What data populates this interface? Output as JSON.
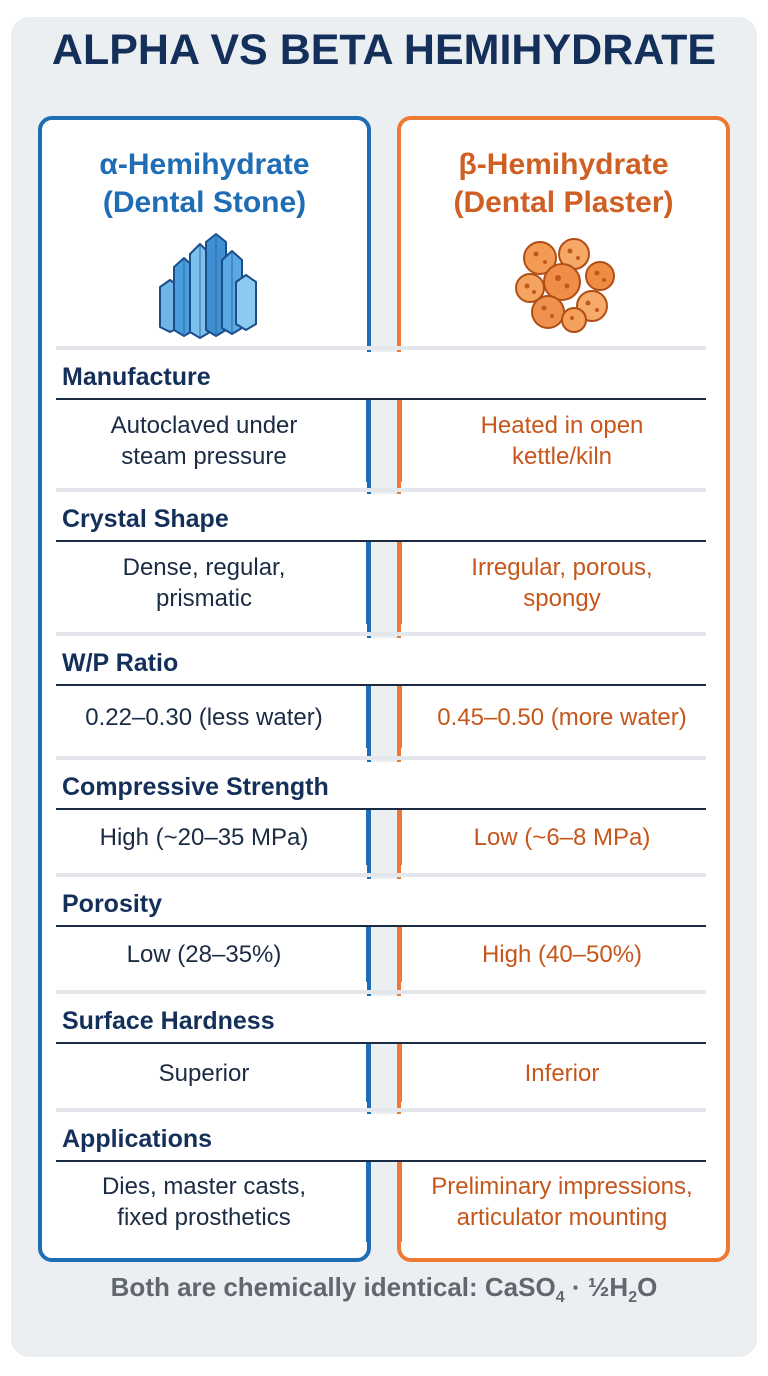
{
  "title": "ALPHA VS BETA HEMIHYDRATE",
  "columns": {
    "left": {
      "line1": "α-Hemihydrate",
      "line2": "(Dental Stone)",
      "color": "#1f6db4",
      "icon": "prismatic-crystal-icon"
    },
    "right": {
      "line1": "β-Hemihydrate",
      "line2": "(Dental Plaster)",
      "color": "#ec7a33",
      "icon": "porous-particles-icon"
    }
  },
  "rows": [
    {
      "label": "Manufacture",
      "left": [
        "Autoclaved under",
        "steam pressure"
      ],
      "right": [
        "Heated in open",
        "kettle/kiln"
      ]
    },
    {
      "label": "Crystal Shape",
      "left": [
        "Dense, regular,",
        "prismatic"
      ],
      "right": [
        "Irregular, porous,",
        "spongy"
      ]
    },
    {
      "label": "W/P Ratio",
      "left": [
        "0.22–0.30 (less water)"
      ],
      "right": [
        "0.45–0.50 (more water)"
      ]
    },
    {
      "label": "Compressive Strength",
      "left": [
        "High (~20–35 MPa)"
      ],
      "right": [
        "Low (~6–8 MPa)"
      ]
    },
    {
      "label": "Porosity",
      "left": [
        "Low (28–35%)"
      ],
      "right": [
        "High (40–50%)"
      ]
    },
    {
      "label": "Surface Hardness",
      "left": [
        "Superior"
      ],
      "right": [
        "Inferior"
      ]
    },
    {
      "label": "Applications",
      "left": [
        "Dies, master casts,",
        "fixed prosthetics"
      ],
      "right": [
        "Preliminary impressions,",
        "articulator mounting"
      ]
    }
  ],
  "footer": {
    "text": "Both are chemically identical: CaSO",
    "sub1": "4",
    "mid": " · ½H",
    "sub2": "2",
    "end": "O"
  }
}
